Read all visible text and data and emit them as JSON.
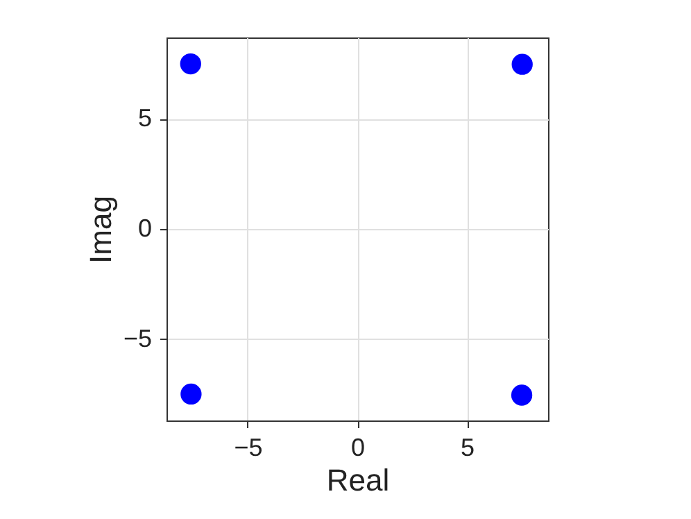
{
  "chart_data": {
    "type": "scatter",
    "xlabel": "Real",
    "ylabel": "Imag",
    "x": [
      -7.6,
      7.52,
      -7.58,
      7.5
    ],
    "series": [
      {
        "color": "#0000ff",
        "values": [
          7.5,
          7.48,
          -7.5,
          -7.55
        ]
      }
    ],
    "xlim": [
      -8.7,
      8.7
    ],
    "ylim": [
      -8.7,
      8.7
    ],
    "xticks": [
      -5,
      0,
      5
    ],
    "yticks": [
      -5,
      0,
      5
    ],
    "grid": true,
    "marker": "circle"
  }
}
